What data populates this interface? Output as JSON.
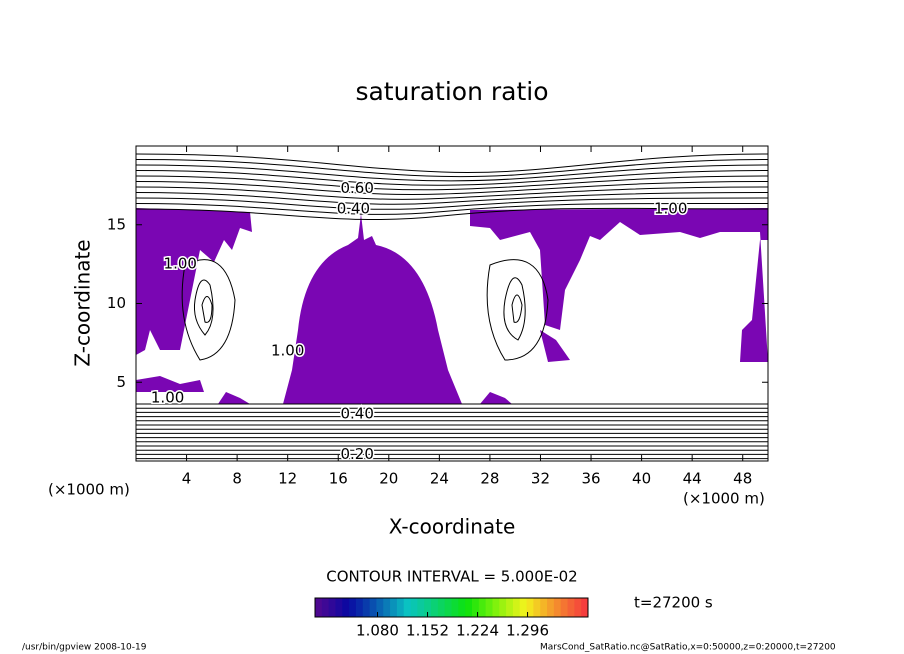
{
  "chart_data": {
    "type": "contour",
    "title": "saturation ratio",
    "x_label": "X-coordinate",
    "y_label": "Z-coordinate",
    "x_unit": "(×1000 m)",
    "y_unit": "(×1000 m)",
    "xlim": [
      0,
      50
    ],
    "xticks": [
      4,
      8,
      12,
      16,
      20,
      24,
      28,
      32,
      36,
      40,
      44,
      48
    ],
    "ylim": [
      0,
      20
    ],
    "yticks": [
      5,
      10,
      15
    ],
    "fill_color": "#7a06b3",
    "contour_labels": [
      {
        "text": "0.60",
        "x": 17.5,
        "y": 17.3
      },
      {
        "text": "0.40",
        "x": 17.2,
        "y": 16.0
      },
      {
        "text": "1.00",
        "x": 42.3,
        "y": 16.0
      },
      {
        "text": "1.00",
        "x": 3.5,
        "y": 12.5
      },
      {
        "text": "1.00",
        "x": 2.5,
        "y": 4.0
      },
      {
        "text": "1.00",
        "x": 12.0,
        "y": 7.0
      },
      {
        "text": "0.40",
        "x": 17.5,
        "y": 3.0
      },
      {
        "text": "0.20",
        "x": 17.5,
        "y": 0.4
      }
    ],
    "contour_interval_text": "CONTOUR INTERVAL = 5.000E-02",
    "colorbar": {
      "clim": [
        0.99,
        1.383
      ],
      "ticks": [
        {
          "value": 1.08,
          "label": "1.080"
        },
        {
          "value": 1.152,
          "label": "1.152"
        },
        {
          "value": 1.224,
          "label": "1.224"
        },
        {
          "value": 1.296,
          "label": "1.296"
        }
      ]
    },
    "time_text": "t=27200 s",
    "footer_left": "/usr/bin/gpview   2008-10-19",
    "footer_right": "MarsCond_SatRatio.nc@SatRatio,x=0:50000,z=0:20000,t=27200"
  }
}
